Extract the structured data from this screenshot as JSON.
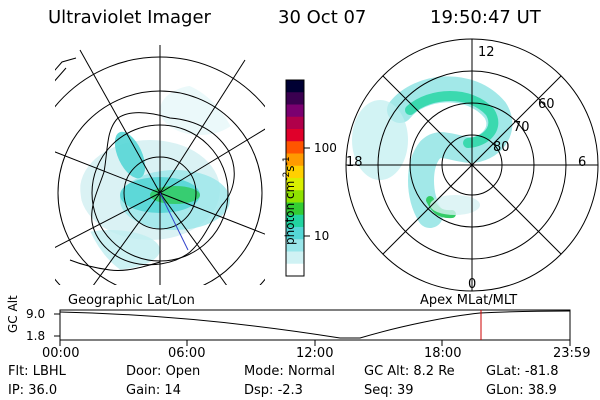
{
  "header": {
    "instrument": "Ultraviolet Imager",
    "date": "30 Oct 07",
    "time": "19:50:47 UT"
  },
  "colorbar": {
    "unit_main": "photon cm",
    "unit_sup1": "-2",
    "unit_s": "s",
    "unit_sup2": "-1",
    "tick_100": "100",
    "tick_10": "10",
    "colors": [
      "#000033",
      "#3a0050",
      "#7a0070",
      "#b0004a",
      "#e0002a",
      "#ff5500",
      "#ff9a00",
      "#ffd000",
      "#d9ef00",
      "#8fe200",
      "#33cc33",
      "#22d4a0",
      "#55d6d6",
      "#9ae6ea",
      "#d0f2f4",
      "#ffffff"
    ]
  },
  "maps": {
    "left_label": "Geographic Lat/Lon",
    "right_label": "Apex MLat/MLT",
    "right_mlt": {
      "top": "12",
      "left": "18",
      "right": "6",
      "bottom": "0"
    },
    "right_lat": [
      "60",
      "70",
      "80"
    ]
  },
  "timeline": {
    "axis_label": "GC Alt",
    "ymax": "9.0",
    "ymin": "1.8",
    "ticks": [
      "00:00",
      "06:00",
      "12:00",
      "18:00",
      "23:59"
    ]
  },
  "status": {
    "row1": [
      {
        "key": "Flt:",
        "value": "LBHL"
      },
      {
        "key": "Door:",
        "value": "Open"
      },
      {
        "key": "Mode:",
        "value": "Normal"
      },
      {
        "key": "GC Alt:",
        "value": "8.2 Re"
      },
      {
        "key": "GLat:",
        "value": "-81.8"
      }
    ],
    "row2": [
      {
        "key": "IP:",
        "value": "36.0"
      },
      {
        "key": "Gain:",
        "value": "14"
      },
      {
        "key": "Dsp:",
        "value": "-2.3"
      },
      {
        "key": "Seq:",
        "value": "39"
      },
      {
        "key": "GLon:",
        "value": "38.9"
      }
    ]
  }
}
